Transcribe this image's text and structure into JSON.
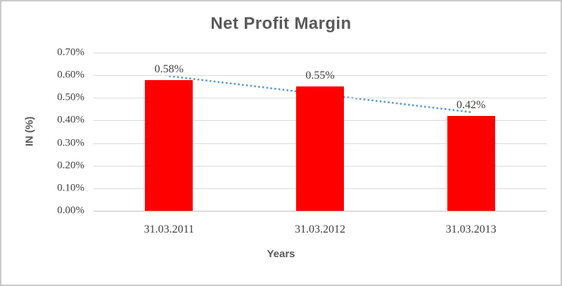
{
  "frame": {
    "background": "#ffffff",
    "border_color": "#c9c9c9",
    "left_edge_color": "#111111"
  },
  "chart_data": {
    "type": "bar",
    "title": "Net Profit Margin",
    "xlabel": "Years",
    "ylabel": "IN (%)",
    "categories": [
      "31.03.2011",
      "31.03.2012",
      "31.03.2013"
    ],
    "series": [
      {
        "name": "Net Profit Margin",
        "values": [
          0.58,
          0.55,
          0.42
        ],
        "data_labels": [
          "0.58%",
          "0.55%",
          "0.42%"
        ],
        "color": "#ff0000"
      }
    ],
    "ylim": [
      0.0,
      0.7
    ],
    "ytick_labels_top_to_bottom": [
      "0.70%",
      "0.60%",
      "0.50%",
      "0.40%",
      "0.30%",
      "0.20%",
      "0.10%",
      "0.00%"
    ],
    "grid": true,
    "gridline_color": "#d9d9d9",
    "axis_line_color": "#bfbfbf",
    "legend": "none",
    "trendline": {
      "type": "linear",
      "style": "dotted",
      "color": "#5b9bd5"
    },
    "title_color": "#595959",
    "tick_label_color": "#3f3f3f"
  }
}
